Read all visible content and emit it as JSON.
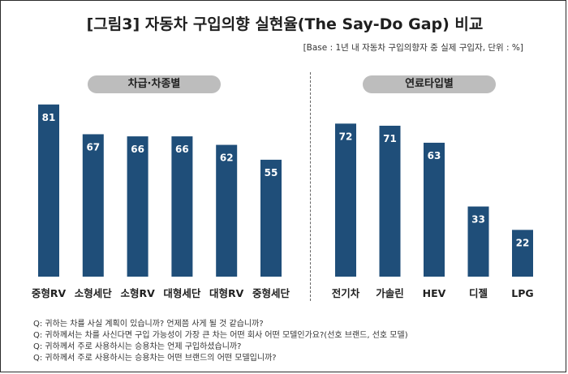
{
  "title": "[그림3] 자동차 구입의향 실현율(The Say-Do Gap) 비교",
  "base_note": "[Base : 1년 내 자동차 구입의향자 중 실제 구입자, 단위 : %]",
  "colors": {
    "bar": "#1f4e79",
    "pill": "#bdbdbd"
  },
  "chart_data": [
    {
      "type": "bar",
      "group_label": "차급·차종별",
      "categories": [
        "중형RV",
        "소형세단",
        "소형RV",
        "대형세단",
        "대형RV",
        "중형세단"
      ],
      "values": [
        81,
        67,
        66,
        66,
        62,
        55
      ],
      "ylim": [
        0,
        100
      ]
    },
    {
      "type": "bar",
      "group_label": "연료타입별",
      "categories": [
        "전기차",
        "가솔린",
        "HEV",
        "디젤",
        "LPG"
      ],
      "values": [
        72,
        71,
        63,
        33,
        22
      ],
      "ylim": [
        0,
        100
      ]
    }
  ],
  "questions": [
    "Q: 귀하는 차를 사실 계획이 있습니까? 언제쯤 사게 될 것 같습니까?",
    "Q: 귀하께서는 차를 사신다면 구입 가능성이 가장 큰 차는 어떤 회사 어떤 모델인가요?(선호 브랜드, 선호 모델)",
    "Q: 귀하께서 주로 사용하시는 승용차는 언제 구입하셨습니까?",
    "Q: 귀하께서 주로 사용하시는 승용차는 어떤 브랜드의 어떤 모델입니까?"
  ]
}
